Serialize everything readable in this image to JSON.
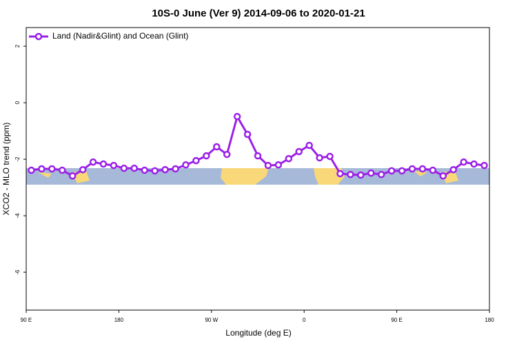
{
  "chart_data": {
    "type": "line",
    "title": "10S-0 June (Ver 9)   2014-09-06 to 2020-01-21",
    "x_label": "Longitude (deg E)",
    "y_label": "XCO2 - MLO trend (ppm)",
    "x": [
      95,
      105,
      115,
      125,
      135,
      145,
      155,
      165,
      175,
      185,
      195,
      205,
      215,
      225,
      235,
      245,
      255,
      265,
      275,
      285,
      295,
      305,
      315,
      325,
      335,
      345,
      355,
      365,
      375,
      385,
      395,
      405,
      415,
      425,
      435,
      445,
      455,
      465,
      475,
      485,
      495,
      505,
      515,
      525,
      535
    ],
    "series": [
      {
        "name": "Land (Nadir&Glint) and Ocean (Glint)",
        "color": "#9b1fe8",
        "values": [
          -2.39,
          -2.34,
          -2.34,
          -2.39,
          -2.59,
          -2.37,
          -2.1,
          -2.17,
          -2.22,
          -2.32,
          -2.32,
          -2.39,
          -2.41,
          -2.37,
          -2.34,
          -2.2,
          -2.05,
          -1.88,
          -1.56,
          -1.83,
          -0.49,
          -1.12,
          -1.88,
          -2.22,
          -2.2,
          -1.98,
          -1.73,
          -1.51,
          -1.95,
          -1.9,
          -2.51,
          -2.54,
          -2.56,
          -2.49,
          -2.54,
          -2.41,
          -2.41,
          -2.34,
          -2.34,
          -2.39,
          -2.59,
          -2.37,
          -2.1,
          -2.17,
          -2.22
        ]
      }
    ],
    "xlim": [
      90,
      540
    ],
    "xticks": [
      {
        "value": 90,
        "label": "90 E"
      },
      180,
      {
        "value": 270,
        "label": "90 W"
      },
      {
        "value": 360,
        "label": "0"
      },
      {
        "value": 450,
        "label": "90 E"
      },
      {
        "value": 540,
        "label": "180"
      }
    ],
    "ylim": [
      -7.34,
      2.66
    ],
    "yticks": [
      2,
      0,
      -2,
      -4,
      -6
    ],
    "legend": "top-left"
  }
}
